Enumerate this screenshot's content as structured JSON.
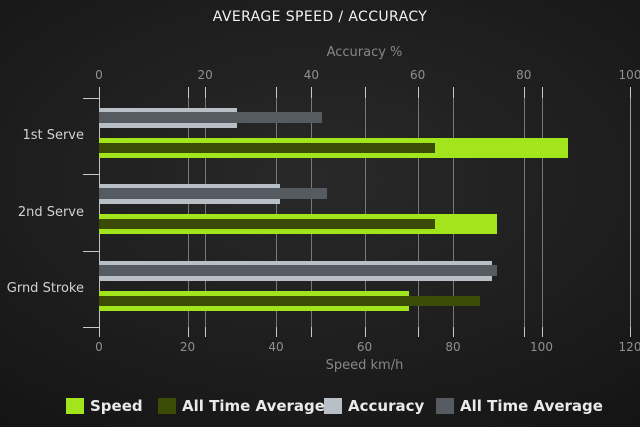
{
  "chart_data": {
    "type": "bar",
    "orientation": "horizontal",
    "title": "AVERAGE SPEED / ACCURACY",
    "categories": [
      "1st Serve",
      "2nd Serve",
      "Grnd Stroke"
    ],
    "top_axis": {
      "label": "Accuracy %",
      "min": 0,
      "max": 100,
      "ticks": [
        0,
        20,
        40,
        60,
        80,
        100
      ]
    },
    "bottom_axis": {
      "label": "Speed km/h",
      "min": 0,
      "max": 120,
      "ticks": [
        0,
        20,
        40,
        60,
        80,
        100,
        120
      ]
    },
    "grid": true,
    "legend_position": "bottom",
    "series": [
      {
        "name": "Speed",
        "axis": "bottom",
        "color": "#a2e51c",
        "values": [
          106,
          90,
          70
        ]
      },
      {
        "name": "All Time Average",
        "axis": "bottom",
        "color": "#3a4c06",
        "values": [
          76,
          76,
          86
        ]
      },
      {
        "name": "Accuracy",
        "axis": "top",
        "color": "#b9bfc6",
        "values": [
          26,
          34,
          74
        ]
      },
      {
        "name": "All Time Average",
        "axis": "top",
        "color": "#565b62",
        "values": [
          42,
          43,
          75
        ]
      }
    ],
    "legend": [
      {
        "label": "Speed",
        "color": "#a2e51c"
      },
      {
        "label": "All Time Average",
        "color": "#3a4c06"
      },
      {
        "label": "Accuracy",
        "color": "#b9bfc6"
      },
      {
        "label": "All Time Average",
        "color": "#565b62"
      }
    ]
  },
  "colors": {
    "background_center": "#292929",
    "background_edge": "#121212",
    "gridline": "rgba(190,190,190,0.55)",
    "axis": "#c8c8c8",
    "tick_label": "#909090",
    "axis_label": "#878787",
    "category_label": "#d2d2d2",
    "title": "#f2f2f2",
    "legend_text": "#e9e9e9"
  }
}
